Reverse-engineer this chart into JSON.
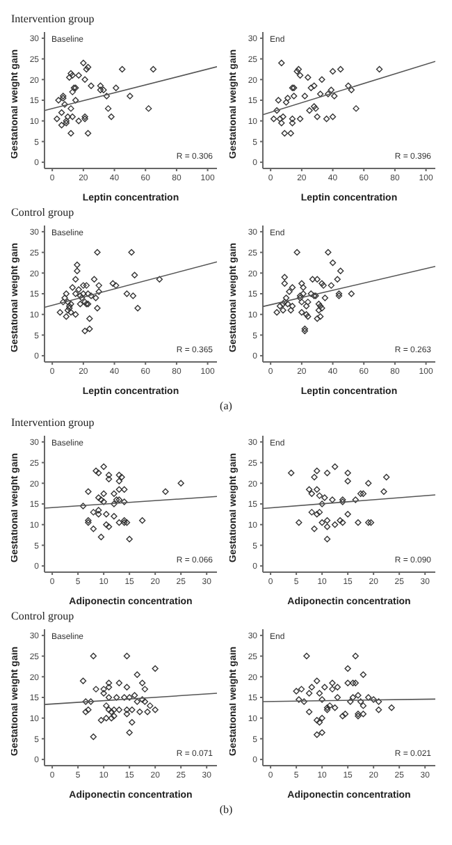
{
  "chart_data": [
    {
      "type": "scatter",
      "subtitle": "Intervention group",
      "title": "Baseline",
      "xlabel": "Leptin concentration",
      "ylabel": "Gestational weight gain",
      "annotations": [
        "R = 0.306"
      ],
      "xlim": [
        -5,
        106
      ],
      "ylim": [
        -1.5,
        31.5
      ],
      "xticks": [
        0,
        20,
        40,
        60,
        80,
        100
      ],
      "yticks": [
        0,
        5,
        10,
        15,
        20,
        25,
        30
      ],
      "marker": "diamond",
      "series": [
        {
          "color": "#333333",
          "x": [
            4,
            3,
            6,
            7,
            7,
            6,
            8,
            9,
            10,
            9,
            11,
            12,
            12,
            13,
            13,
            12,
            13,
            14,
            15,
            15,
            17,
            17,
            20,
            21,
            21,
            21,
            22,
            23,
            23,
            25,
            31,
            31,
            33,
            35,
            36,
            38,
            41,
            45,
            50,
            62,
            65
          ],
          "values": [
            15,
            10.5,
            9,
            16,
            15.5,
            12,
            14,
            10,
            11,
            9.5,
            20.5,
            13,
            21.5,
            21,
            17,
            7,
            11,
            18,
            18,
            15,
            10,
            21,
            24,
            11,
            10.5,
            20,
            22.5,
            23,
            7,
            18.5,
            18.5,
            17.5,
            17.5,
            16,
            13,
            11,
            18,
            22.5,
            16,
            13,
            22.5
          ]
        },
        {
          "type": "line",
          "marker": "none",
          "color": "#555555",
          "x": [
            -5,
            106
          ],
          "values": [
            12.5,
            23.1
          ]
        }
      ]
    },
    {
      "type": "scatter",
      "title": "End",
      "xlabel": "Leptin concentration",
      "ylabel": "Gestational weight gain",
      "annotations": [
        "R = 0.396"
      ],
      "xlim": [
        -5,
        106
      ],
      "ylim": [
        -1.5,
        31.5
      ],
      "xticks": [
        0,
        20,
        40,
        60,
        80,
        100
      ],
      "yticks": [
        0,
        5,
        10,
        15,
        20,
        25,
        30
      ],
      "marker": "diamond",
      "series": [
        {
          "color": "#333333",
          "x": [
            2,
            4,
            5,
            6,
            7,
            7,
            8,
            9,
            10,
            11,
            13,
            14,
            14,
            14,
            15,
            15,
            17,
            18,
            19,
            19,
            22,
            24,
            25,
            26,
            28,
            28,
            29,
            30,
            32,
            33,
            36,
            37,
            39,
            40,
            40,
            41,
            45,
            50,
            52,
            55,
            70
          ],
          "values": [
            10.5,
            12.5,
            15,
            10.5,
            9.5,
            24,
            11,
            7,
            14.5,
            15.5,
            7,
            10.5,
            9.5,
            18,
            16,
            18,
            22,
            22.5,
            21,
            10.5,
            16,
            20.5,
            12.5,
            18,
            18.5,
            13.5,
            13,
            11,
            16.5,
            20,
            10.5,
            16.5,
            17.5,
            11,
            22,
            16,
            22.5,
            18.5,
            17.5,
            13,
            22.5
          ]
        },
        {
          "type": "line",
          "marker": "none",
          "color": "#555555",
          "x": [
            -5,
            106
          ],
          "values": [
            11.5,
            24.4
          ]
        }
      ]
    },
    {
      "type": "scatter",
      "subtitle": "Control group",
      "title": "Baseline",
      "xlabel": "Leptin concentration",
      "ylabel": "Gestational weight gain",
      "annotations": [
        "R = 0.365"
      ],
      "xlim": [
        -5,
        106
      ],
      "ylim": [
        -1.5,
        31.5
      ],
      "xticks": [
        0,
        20,
        40,
        60,
        80,
        100
      ],
      "yticks": [
        0,
        5,
        10,
        15,
        20,
        25,
        30
      ],
      "marker": "diamond",
      "series": [
        {
          "color": "#333333",
          "x": [
            5,
            7,
            8,
            9,
            9,
            10,
            10,
            11,
            11,
            12,
            12,
            13,
            15,
            15,
            15,
            16,
            16,
            17,
            18,
            18,
            19,
            20,
            20,
            21,
            21,
            22,
            22,
            23,
            23,
            24,
            24,
            25,
            27,
            28,
            29,
            29,
            30,
            30,
            39,
            41,
            48,
            51,
            52,
            53,
            55,
            69
          ],
          "values": [
            10.5,
            13,
            14,
            9.5,
            15,
            13,
            11,
            12,
            11.5,
            12.5,
            10.5,
            16.5,
            18.5,
            15,
            10,
            22,
            20.5,
            16,
            12.5,
            14.5,
            14,
            17,
            15,
            13,
            6,
            12.5,
            17,
            15,
            12.5,
            9,
            6.5,
            14.5,
            18.5,
            14,
            25,
            11.5,
            15.5,
            17,
            17.5,
            17,
            15,
            25,
            14.5,
            19.5,
            11.5,
            18.5
          ]
        },
        {
          "type": "line",
          "marker": "none",
          "color": "#555555",
          "x": [
            -5,
            106
          ],
          "values": [
            11.7,
            22.7
          ]
        }
      ]
    },
    {
      "type": "scatter",
      "title": "End",
      "xlabel": "Leptin concentration",
      "ylabel": "Gestational weight gain",
      "annotations": [
        "R = 0.263",
        "(a)"
      ],
      "xlim": [
        -5,
        106
      ],
      "ylim": [
        -1.5,
        31.5
      ],
      "xticks": [
        0,
        20,
        40,
        60,
        80,
        100
      ],
      "yticks": [
        0,
        5,
        10,
        15,
        20,
        25,
        30
      ],
      "marker": "diamond",
      "series": [
        {
          "color": "#333333",
          "x": [
            4,
            6,
            8,
            8,
            9,
            9,
            9,
            10,
            11,
            12,
            13,
            14,
            14,
            17,
            19,
            19,
            20,
            20,
            20,
            21,
            21,
            22,
            22,
            23,
            23,
            24,
            24,
            26,
            27,
            28,
            29,
            30,
            30,
            31,
            31,
            32,
            32,
            33,
            33,
            34,
            35,
            37,
            39,
            40,
            43,
            44,
            44,
            45,
            52
          ],
          "values": [
            10.5,
            12,
            12.5,
            11,
            19,
            17.5,
            13,
            14,
            12.5,
            15.5,
            11,
            16.5,
            12,
            25,
            14.5,
            14,
            13,
            10.5,
            17.5,
            16.5,
            15,
            6.5,
            6,
            12,
            10,
            13,
            9.5,
            15,
            18.5,
            14.5,
            14.5,
            9,
            18.5,
            12.5,
            11,
            12,
            9.5,
            17.5,
            11.5,
            17,
            14,
            25,
            17,
            22.5,
            18.5,
            15,
            14.5,
            20.5,
            15
          ]
        },
        {
          "type": "line",
          "marker": "none",
          "color": "#555555",
          "x": [
            -5,
            106
          ],
          "values": [
            11.9,
            21.6
          ]
        }
      ]
    },
    {
      "type": "scatter",
      "subtitle": "Intervention group",
      "title": "Baseline",
      "xlabel": "Adiponectin concentration",
      "ylabel": "Gestational weight gain",
      "annotations": [
        "R = 0.066"
      ],
      "xlim": [
        -1.5,
        32
      ],
      "ylim": [
        -1.5,
        31.5
      ],
      "xticks": [
        0,
        5,
        10,
        15,
        20,
        25,
        30
      ],
      "yticks": [
        0,
        5,
        10,
        15,
        20,
        25,
        30
      ],
      "marker": "diamond",
      "series": [
        {
          "color": "#333333",
          "x": [
            6,
            7,
            7,
            7,
            8,
            8,
            8.5,
            9,
            9,
            9,
            9,
            9.5,
            9.5,
            10,
            10,
            10,
            10.5,
            10.5,
            11,
            11,
            11,
            12,
            12,
            12,
            12.5,
            13,
            13,
            13,
            13,
            13,
            13.5,
            14,
            14,
            14,
            14,
            14.5,
            15,
            17.5,
            22,
            25
          ],
          "values": [
            14.5,
            18,
            10.5,
            11,
            13,
            9,
            23,
            22.5,
            12.5,
            13.5,
            16.5,
            7,
            16,
            17.5,
            15.5,
            24,
            12.5,
            10,
            9.5,
            22,
            21,
            15,
            17.5,
            12,
            16,
            20.5,
            18.5,
            22,
            16,
            10.5,
            21.5,
            18.5,
            15.5,
            10.5,
            11,
            10.5,
            6.5,
            11,
            18,
            20
          ]
        },
        {
          "type": "line",
          "marker": "none",
          "color": "#555555",
          "x": [
            -1.5,
            32
          ],
          "values": [
            14.0,
            16.8
          ]
        }
      ]
    },
    {
      "type": "scatter",
      "title": "End",
      "xlabel": "Adiponectin concentration",
      "ylabel": "Gestational weight gain",
      "annotations": [
        "R = 0.090"
      ],
      "xlim": [
        -1.5,
        32
      ],
      "ylim": [
        -1.5,
        31.5
      ],
      "xticks": [
        0,
        5,
        10,
        15,
        20,
        25,
        30
      ],
      "yticks": [
        0,
        5,
        10,
        15,
        20,
        25,
        30
      ],
      "marker": "diamond",
      "series": [
        {
          "color": "#333333",
          "x": [
            4,
            5.5,
            7.5,
            8,
            8,
            8.5,
            8.5,
            9,
            9,
            9,
            9.5,
            9.5,
            10,
            10,
            10.5,
            11,
            11,
            11,
            11,
            12,
            12.5,
            12.5,
            13.5,
            14,
            14,
            14,
            15,
            15,
            15,
            16.5,
            17,
            17.5,
            18,
            19,
            19,
            19.5,
            22,
            22.5
          ],
          "values": [
            22.5,
            10.5,
            18.5,
            13,
            17.5,
            9,
            21.5,
            12.5,
            18.5,
            23,
            13,
            17,
            10.5,
            15,
            16.5,
            9.5,
            6.5,
            11,
            22.5,
            16,
            24,
            10,
            11,
            10.5,
            16,
            15.5,
            12.5,
            20.5,
            22.5,
            16,
            10.5,
            17.5,
            17.5,
            20,
            10.5,
            10.5,
            18,
            21.5
          ]
        },
        {
          "type": "line",
          "marker": "none",
          "color": "#555555",
          "x": [
            -1.5,
            32
          ],
          "values": [
            13.9,
            17.2
          ]
        }
      ]
    },
    {
      "type": "scatter",
      "subtitle": "Control group",
      "title": "Baseline",
      "xlabel": "Adiponectin concentration",
      "ylabel": "Gestational weight gain",
      "annotations": [
        "R = 0.071"
      ],
      "xlim": [
        -1.5,
        32
      ],
      "ylim": [
        -1.5,
        31.5
      ],
      "xticks": [
        0,
        5,
        10,
        15,
        20,
        25,
        30
      ],
      "yticks": [
        0,
        5,
        10,
        15,
        20,
        25,
        30
      ],
      "marker": "diamond",
      "series": [
        {
          "color": "#333333",
          "x": [
            6,
            6.5,
            6.5,
            7,
            7.5,
            8,
            8,
            8.5,
            9.5,
            10,
            10,
            10.5,
            10.5,
            11,
            11,
            11,
            11,
            11.5,
            11.5,
            12,
            12,
            12.5,
            13,
            13,
            14,
            14.5,
            14.5,
            14.5,
            14.5,
            15,
            15,
            15.5,
            15.5,
            16,
            16.5,
            16.5,
            17,
            17.5,
            17.5,
            18,
            18,
            18.5,
            19,
            20,
            20
          ],
          "values": [
            19,
            14,
            11.5,
            12,
            14,
            25,
            5.5,
            17,
            9.5,
            16,
            17,
            13,
            10,
            17.5,
            12,
            15,
            18.5,
            10,
            11.5,
            12,
            10.5,
            15,
            18.5,
            12,
            15,
            25,
            17.5,
            12,
            11,
            15,
            6.5,
            9,
            12,
            15.5,
            14,
            20.5,
            11.5,
            18.5,
            14.5,
            17,
            14,
            11.5,
            13,
            22,
            12
          ]
        },
        {
          "type": "line",
          "marker": "none",
          "color": "#555555",
          "x": [
            -1.5,
            32
          ],
          "values": [
            13.3,
            16.0
          ]
        }
      ]
    },
    {
      "type": "scatter",
      "title": "End",
      "xlabel": "Adiponectin concentration",
      "ylabel": "Gestational weight gain",
      "annotations": [
        "R = 0.021",
        "(b)"
      ],
      "xlim": [
        -1.5,
        32
      ],
      "ylim": [
        -1.5,
        31.5
      ],
      "xticks": [
        0,
        5,
        10,
        15,
        20,
        25,
        30
      ],
      "yticks": [
        0,
        5,
        10,
        15,
        20,
        25,
        30
      ],
      "marker": "diamond",
      "series": [
        {
          "color": "#333333",
          "x": [
            5,
            5.5,
            6,
            6.5,
            7,
            7.5,
            7.5,
            8,
            9,
            9,
            9,
            9.5,
            9.5,
            10,
            10,
            10,
            10.5,
            11,
            11,
            11.5,
            12,
            12,
            12.5,
            13,
            13,
            14,
            14.5,
            15,
            15,
            15.5,
            16,
            16,
            16.5,
            16.5,
            17,
            17,
            17,
            17.5,
            18,
            18,
            18,
            19,
            20,
            21,
            21,
            23.5
          ],
          "values": [
            16.5,
            14.5,
            17,
            14,
            25,
            16,
            11.5,
            17.5,
            9.5,
            19,
            6,
            9,
            16,
            6.5,
            10,
            14.5,
            17.5,
            12.5,
            12,
            13,
            18.5,
            17,
            12.5,
            17.5,
            15,
            10.5,
            11,
            18.5,
            22,
            14,
            15,
            18.5,
            25,
            18.5,
            15.5,
            10.5,
            11,
            14,
            20.5,
            13,
            11,
            15,
            14.5,
            14,
            12,
            12.5
          ]
        },
        {
          "type": "line",
          "marker": "none",
          "color": "#555555",
          "x": [
            -1.5,
            32
          ],
          "values": [
            14.0,
            14.6
          ]
        }
      ]
    }
  ]
}
